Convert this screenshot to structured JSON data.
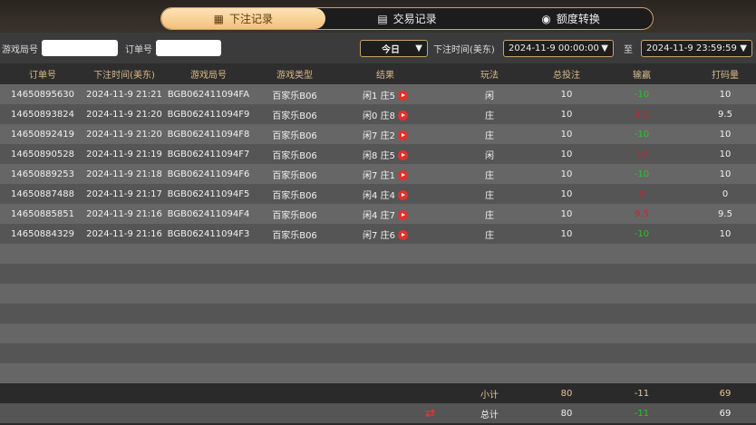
{
  "tabs": [
    {
      "label": "下注记录",
      "icon": "bet-record-icon",
      "active": true
    },
    {
      "label": "交易记录",
      "icon": "transaction-icon"
    },
    {
      "label": "额度转换",
      "icon": "coin-transfer-icon"
    }
  ],
  "filters": {
    "game_round_label": "游戏局号",
    "game_round_value": "",
    "order_label": "订单号",
    "order_value": "",
    "period": "今日",
    "time_label": "下注时间(美东)",
    "start": "2024-11-9 00:00:00",
    "to_label": "至",
    "end": "2024-11-9 23:59:59"
  },
  "columns": [
    "订单号",
    "下注时间(美东)",
    "游戏局号",
    "游戏类型",
    "结果",
    "玩法",
    "总投注",
    "输赢",
    "打码量"
  ],
  "rows": [
    [
      "14650895630",
      "2024-11-9 21:21",
      "BGB062411094FA",
      "百家乐B06",
      "闲1 庄5",
      "闲",
      "10",
      "-10",
      "10"
    ],
    [
      "14650893824",
      "2024-11-9 21:20",
      "BGB062411094F9",
      "百家乐B06",
      "闲0 庄8",
      "庄",
      "10",
      "9.5",
      "9.5"
    ],
    [
      "14650892419",
      "2024-11-9 21:20",
      "BGB062411094F8",
      "百家乐B06",
      "闲7 庄2",
      "庄",
      "10",
      "-10",
      "10"
    ],
    [
      "14650890528",
      "2024-11-9 21:19",
      "BGB062411094F7",
      "百家乐B06",
      "闲8 庄5",
      "闲",
      "10",
      "10",
      "10"
    ],
    [
      "14650889253",
      "2024-11-9 21:18",
      "BGB062411094F6",
      "百家乐B06",
      "闲7 庄1",
      "庄",
      "10",
      "-10",
      "10"
    ],
    [
      "14650887488",
      "2024-11-9 21:17",
      "BGB062411094F5",
      "百家乐B06",
      "闲4 庄4",
      "庄",
      "10",
      "0",
      "0"
    ],
    [
      "14650885851",
      "2024-11-9 21:16",
      "BGB062411094F4",
      "百家乐B06",
      "闲4 庄7",
      "庄",
      "10",
      "9.5",
      "9.5"
    ],
    [
      "14650884329",
      "2024-11-9 21:16",
      "BGB062411094F3",
      "百家乐B06",
      "闲7 庄6",
      "庄",
      "10",
      "-10",
      "10"
    ]
  ],
  "subtotal": {
    "label": "小计",
    "bet": "80",
    "winloss": "-11",
    "turnover": "69"
  },
  "total": {
    "label": "总计",
    "bet": "80",
    "winloss": "-11",
    "turnover": "69"
  },
  "colors": {
    "accent": "#f3c07c",
    "loss": "#27c22a",
    "win": "#c0282a"
  }
}
